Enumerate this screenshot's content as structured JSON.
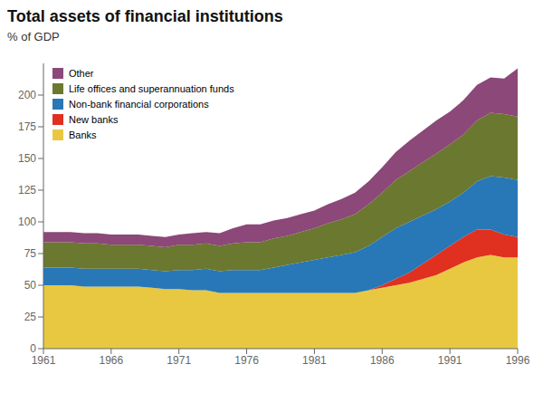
{
  "chart_data": {
    "type": "area",
    "title": "Total assets of financial institutions",
    "subtitle": "% of GDP",
    "x": [
      1961,
      1962,
      1963,
      1964,
      1965,
      1966,
      1967,
      1968,
      1969,
      1970,
      1971,
      1972,
      1973,
      1974,
      1975,
      1976,
      1977,
      1978,
      1979,
      1980,
      1981,
      1982,
      1983,
      1984,
      1985,
      1986,
      1987,
      1988,
      1989,
      1990,
      1991,
      1992,
      1993,
      1994,
      1995,
      1996
    ],
    "series": [
      {
        "name": "Banks",
        "color": "#E8C840",
        "values": [
          50,
          50,
          50,
          49,
          49,
          49,
          49,
          49,
          48,
          47,
          47,
          46,
          46,
          44,
          44,
          44,
          44,
          44,
          44,
          44,
          44,
          44,
          44,
          44,
          46,
          48,
          50,
          52,
          55,
          58,
          63,
          68,
          72,
          74,
          72,
          72
        ]
      },
      {
        "name": "New banks",
        "color": "#E03020",
        "values": [
          0,
          0,
          0,
          0,
          0,
          0,
          0,
          0,
          0,
          0,
          0,
          0,
          0,
          0,
          0,
          0,
          0,
          0,
          0,
          0,
          0,
          0,
          0,
          0,
          0,
          2,
          5,
          8,
          12,
          16,
          18,
          20,
          22,
          20,
          18,
          16
        ]
      },
      {
        "name": "Non-bank financial corporations",
        "color": "#2878B8",
        "values": [
          14,
          14,
          14,
          14,
          14,
          14,
          14,
          14,
          14,
          14,
          15,
          16,
          17,
          17,
          18,
          18,
          18,
          20,
          22,
          24,
          26,
          28,
          30,
          32,
          35,
          38,
          40,
          40,
          38,
          36,
          35,
          35,
          38,
          42,
          45,
          45
        ]
      },
      {
        "name": "Life offices and superannuation funds",
        "color": "#6B7830",
        "values": [
          20,
          20,
          20,
          20,
          20,
          19,
          19,
          19,
          19,
          19,
          20,
          20,
          20,
          20,
          21,
          22,
          22,
          23,
          23,
          24,
          25,
          27,
          28,
          30,
          33,
          35,
          38,
          40,
          42,
          44,
          45,
          46,
          48,
          50,
          50,
          50
        ]
      },
      {
        "name": "Other",
        "color": "#8B4878",
        "values": [
          8,
          8,
          8,
          8,
          8,
          8,
          8,
          8,
          8,
          8,
          8,
          9,
          9,
          10,
          12,
          14,
          14,
          14,
          14,
          14,
          14,
          15,
          16,
          17,
          18,
          20,
          22,
          24,
          25,
          26,
          26,
          27,
          28,
          28,
          28,
          38
        ]
      }
    ],
    "xlim": [
      1961,
      1996
    ],
    "xticks": [
      1961,
      1966,
      1971,
      1976,
      1981,
      1986,
      1991,
      1996
    ],
    "ylim": [
      0,
      225
    ],
    "yticks": [
      0,
      25,
      50,
      75,
      100,
      125,
      150,
      175,
      200
    ],
    "stacked": true,
    "grid": false,
    "legend": "upper left"
  }
}
